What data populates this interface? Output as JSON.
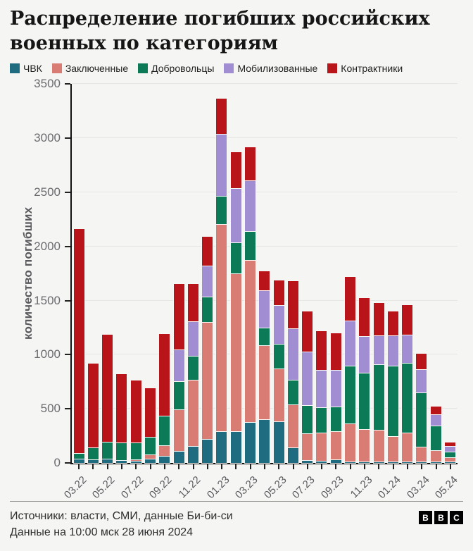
{
  "header": {
    "title": "Распределение погибших российских военных по категориям"
  },
  "chart_data": {
    "type": "bar",
    "stacked": true,
    "title": "Распределение погибших российских военных по категориям",
    "xlabel": "",
    "ylabel": "количество погибших",
    "ylim": [
      0,
      3500
    ],
    "yticks": [
      0,
      500,
      1000,
      1500,
      2000,
      2500,
      3000,
      3500
    ],
    "grid": true,
    "legend_position": "top",
    "label_every": 2,
    "categories": [
      "03.22",
      "04.22",
      "05.22",
      "06.22",
      "07.22",
      "08.22",
      "09.22",
      "10.22",
      "11.22",
      "12.22",
      "01.23",
      "02.23",
      "03.23",
      "04.23",
      "05.23",
      "06.23",
      "07.23",
      "08.23",
      "09.23",
      "10.23",
      "11.23",
      "12.23",
      "01.24",
      "02.24",
      "03.24",
      "04.24",
      "05.24"
    ],
    "series": [
      {
        "name": "ЧВК",
        "color": "#1f6b80",
        "values": [
          35,
          25,
          30,
          20,
          15,
          30,
          60,
          105,
          150,
          215,
          290,
          285,
          370,
          395,
          375,
          140,
          20,
          15,
          25,
          10,
          10,
          5,
          10,
          10,
          5,
          5,
          5
        ]
      },
      {
        "name": "Заключенные",
        "color": "#d97c73",
        "values": [
          0,
          0,
          0,
          0,
          10,
          45,
          95,
          385,
          615,
          1080,
          1910,
          1460,
          1500,
          685,
          490,
          395,
          250,
          260,
          265,
          350,
          295,
          295,
          230,
          265,
          140,
          105,
          40
        ]
      },
      {
        "name": "Добровольцы",
        "color": "#0d7a57",
        "values": [
          50,
          115,
          160,
          165,
          155,
          160,
          275,
          260,
          215,
          235,
          260,
          285,
          265,
          165,
          230,
          230,
          260,
          235,
          225,
          530,
          525,
          605,
          655,
          640,
          500,
          230,
          55
        ]
      },
      {
        "name": "Мобилизованные",
        "color": "#a18dd1",
        "values": [
          0,
          0,
          0,
          0,
          0,
          0,
          0,
          290,
          325,
          285,
          570,
          500,
          465,
          345,
          355,
          475,
          490,
          345,
          340,
          420,
          335,
          270,
          280,
          265,
          215,
          105,
          50
        ]
      },
      {
        "name": "Контрактники",
        "color": "#b81419",
        "values": [
          2075,
          780,
          995,
          635,
          580,
          455,
          760,
          615,
          350,
          275,
          335,
          340,
          315,
          180,
          235,
          440,
          380,
          365,
          345,
          410,
          355,
          305,
          225,
          275,
          150,
          75,
          40
        ]
      }
    ]
  },
  "footer": {
    "source_line1": "Источники: власти, СМИ, данные Би-би-си",
    "source_line2": "Данные на 10:00 мск 28 июня 2024",
    "logo_letters": [
      "B",
      "B",
      "C"
    ]
  }
}
